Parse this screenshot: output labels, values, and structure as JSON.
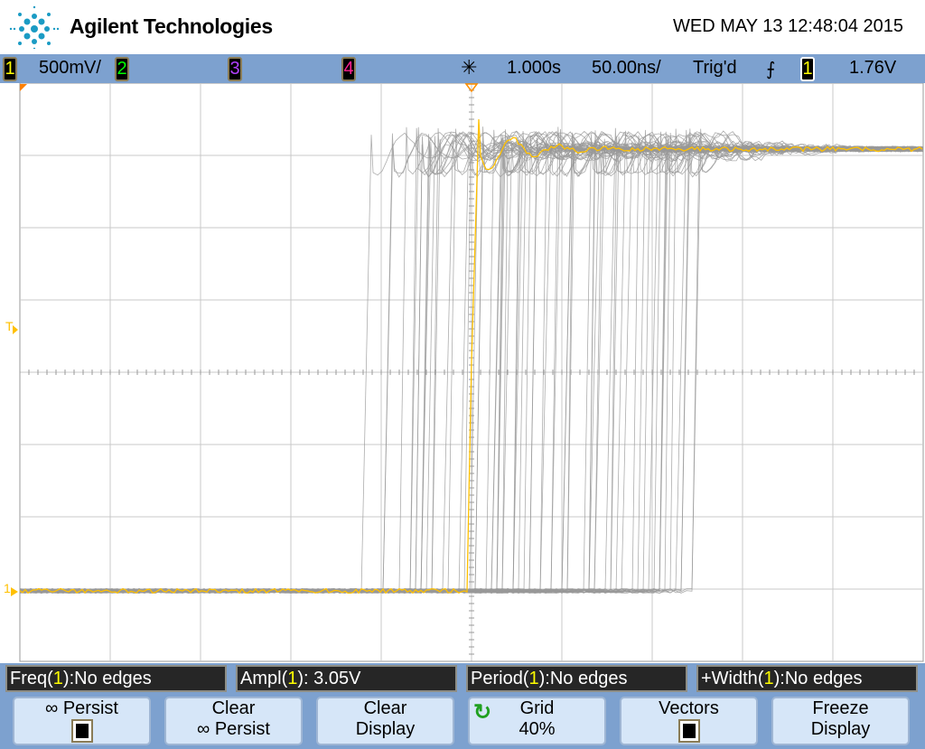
{
  "header": {
    "brand": "Agilent Technologies",
    "datetime": "WED MAY 13 12:48:04 2015",
    "logo_icon": "agilent-spark-logo"
  },
  "statusbar": {
    "channels": [
      {
        "num": "1",
        "color": "#ffff00",
        "scale": "500mV/"
      },
      {
        "num": "2",
        "color": "#00ff00",
        "scale": ""
      },
      {
        "num": "3",
        "color": "#b040ff",
        "scale": ""
      },
      {
        "num": "4",
        "color": "#ff2090",
        "scale": ""
      }
    ],
    "acq_icon": "acquire-star-icon",
    "delay": "1.000s",
    "timebase": "50.00ns/",
    "trigger_status": "Trig'd",
    "trigger_slope_icon": "rising-edge-icon",
    "trigger_source": "1",
    "trigger_level": "1.76V"
  },
  "plot": {
    "grid_divisions": {
      "x": 10,
      "y": 8
    },
    "trace_color": "#ffc000",
    "persist_color": "#999999",
    "trigger_marker": "T",
    "ground_marker": "1"
  },
  "measurements": [
    {
      "name": "Freq",
      "src": "1",
      "value": ":No edges"
    },
    {
      "name": "Ampl",
      "src": "1",
      "value": ": 3.05V"
    },
    {
      "name": "Period",
      "src": "1",
      "value": ":No edges"
    },
    {
      "name": "+Width",
      "src": "1",
      "value": ":No edges"
    }
  ],
  "softkeys": [
    {
      "line1": "∞ Persist",
      "line2": "",
      "checkbox": true,
      "checked": true
    },
    {
      "line1": "Clear",
      "line2": "∞ Persist"
    },
    {
      "line1": "Clear",
      "line2": "Display"
    },
    {
      "line1": "Grid",
      "line2": "40%",
      "icon": "rotate-knob-icon"
    },
    {
      "line1": "Vectors",
      "line2": "",
      "checkbox": true,
      "checked": true
    },
    {
      "line1": "Freeze",
      "line2": "Display"
    }
  ]
}
